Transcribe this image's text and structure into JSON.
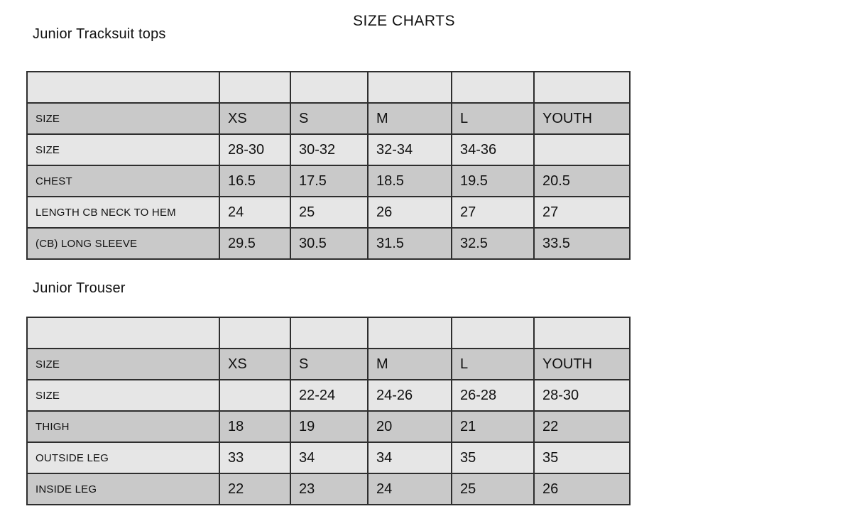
{
  "page_title": "SIZE CHARTS",
  "sections": [
    {
      "heading": "Junior Tracksuit tops",
      "table": {
        "rows": [
          {
            "label": "",
            "values": [
              "",
              "",
              "",
              "",
              ""
            ]
          },
          {
            "label": "SIZE",
            "values": [
              "XS",
              "S",
              "M",
              "L",
              "YOUTH"
            ]
          },
          {
            "label": "SIZE",
            "values": [
              "28-30",
              "30-32",
              "32-34",
              "34-36",
              ""
            ]
          },
          {
            "label": "CHEST",
            "values": [
              "16.5",
              "17.5",
              "18.5",
              "19.5",
              "20.5"
            ]
          },
          {
            "label": "LENGTH CB NECK TO HEM",
            "values": [
              "24",
              "25",
              "26",
              "27",
              "27"
            ]
          },
          {
            "label": "(CB) LONG SLEEVE",
            "values": [
              "29.5",
              "30.5",
              "31.5",
              "32.5",
              "33.5"
            ]
          }
        ]
      }
    },
    {
      "heading": "Junior Trouser",
      "table": {
        "rows": [
          {
            "label": "",
            "values": [
              "",
              "",
              "",
              "",
              ""
            ]
          },
          {
            "label": "SIZE",
            "values": [
              "XS",
              "S",
              "M",
              "L",
              "YOUTH"
            ]
          },
          {
            "label": "SIZE",
            "values": [
              "",
              "22-24",
              "24-26",
              "26-28",
              "28-30"
            ]
          },
          {
            "label": "THIGH",
            "values": [
              "18",
              "19",
              "20",
              "21",
              "22"
            ]
          },
          {
            "label": "OUTSIDE LEG",
            "values": [
              "33",
              "34",
              "34",
              "35",
              "35"
            ]
          },
          {
            "label": "INSIDE LEG",
            "values": [
              "22",
              "23",
              "24",
              "25",
              "26"
            ]
          }
        ]
      }
    }
  ],
  "colors": {
    "background": "#ffffff",
    "text": "#111111",
    "row_light": "#e6e6e6",
    "row_dark": "#c9c9c9",
    "border": "#2e2e2e"
  }
}
